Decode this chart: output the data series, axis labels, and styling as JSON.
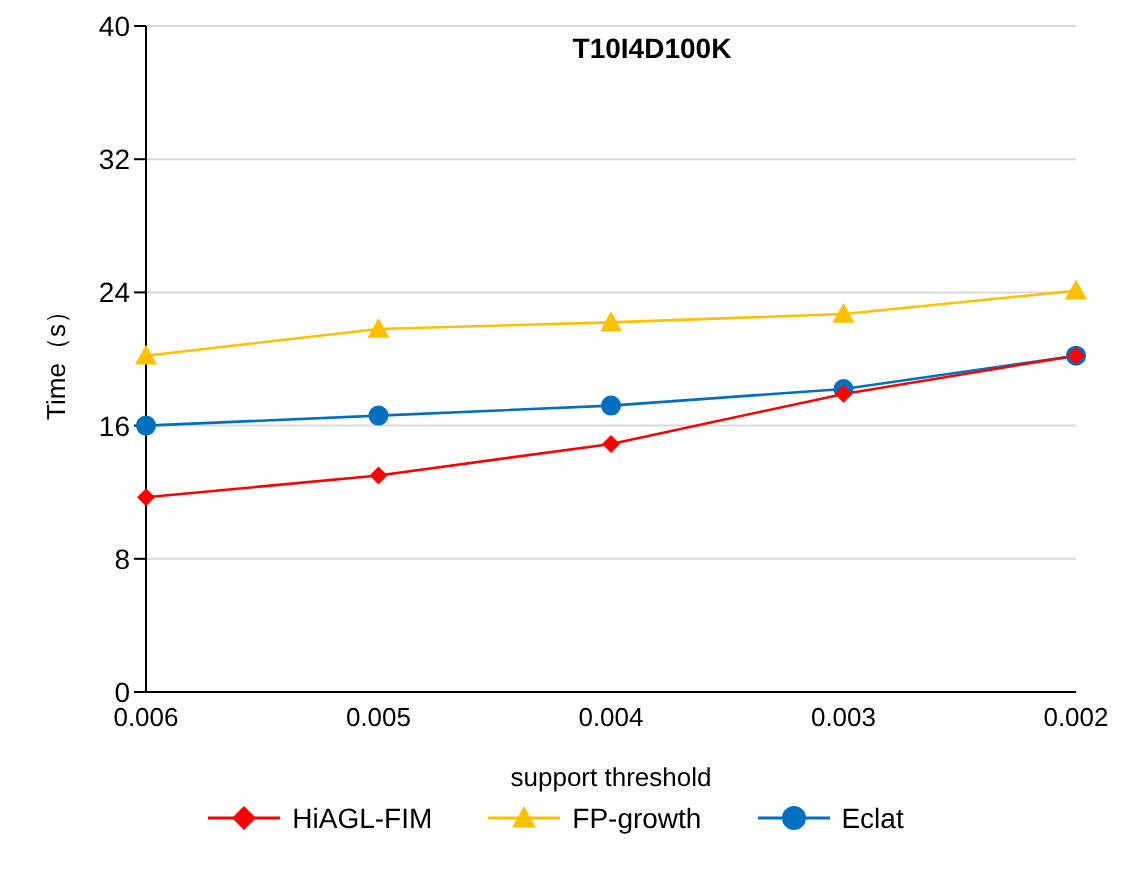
{
  "chart_data": {
    "type": "line",
    "title": "T10I4D100K",
    "xlabel": "support threshold",
    "ylabel": "Time（s）",
    "categories": [
      "0.006",
      "0.005",
      "0.004",
      "0.003",
      "0.002"
    ],
    "series": [
      {
        "name": "HiAGL-FIM",
        "color": "#ff0000",
        "marker": "diamond",
        "values": [
          11.7,
          13.0,
          14.9,
          17.9,
          20.2
        ]
      },
      {
        "name": "FP-growth",
        "color": "#ffc000",
        "marker": "triangle",
        "values": [
          20.2,
          21.8,
          22.2,
          22.7,
          24.1
        ]
      },
      {
        "name": "Eclat",
        "color": "#0070c0",
        "marker": "circle",
        "values": [
          16.0,
          16.6,
          17.2,
          18.2,
          20.2
        ]
      }
    ],
    "ylim": [
      0,
      40
    ],
    "yticks": [
      0,
      8,
      16,
      24,
      32,
      40
    ],
    "grid": "y",
    "legend": "bottom"
  }
}
